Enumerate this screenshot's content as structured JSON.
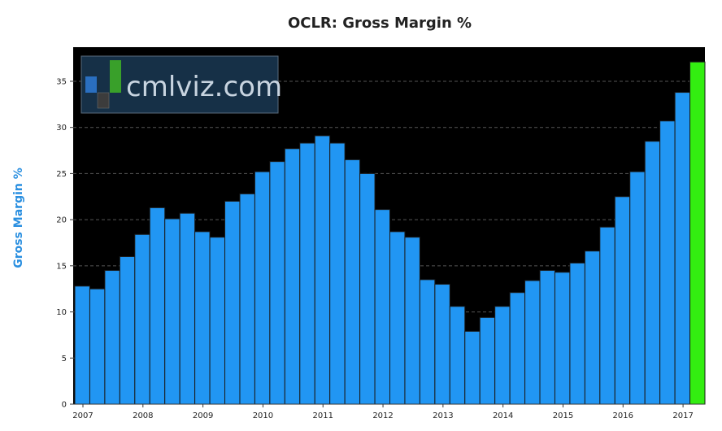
{
  "chart_data": {
    "type": "bar",
    "title": "OCLR: Gross Margin %",
    "xlabel": "",
    "ylabel": "Gross Margin %",
    "ylim": [
      0,
      38.7
    ],
    "yticks": [
      0,
      5,
      10,
      15,
      20,
      25,
      30,
      35
    ],
    "xtick_labels": [
      "2007",
      "2008",
      "2009",
      "2010",
      "2011",
      "2012",
      "2013",
      "2014",
      "2015",
      "2016",
      "2017"
    ],
    "grid": true,
    "values": [
      12.8,
      12.5,
      14.5,
      16.0,
      18.4,
      21.3,
      20.1,
      20.7,
      18.7,
      18.1,
      22.0,
      22.8,
      25.2,
      26.3,
      27.7,
      28.3,
      29.1,
      28.3,
      26.5,
      25.0,
      21.1,
      18.7,
      18.1,
      13.5,
      13.0,
      10.6,
      7.9,
      9.4,
      10.6,
      12.1,
      13.4,
      14.5,
      14.3,
      15.3,
      16.6,
      19.2,
      22.5,
      25.2,
      28.5,
      30.7,
      33.8,
      37.1
    ],
    "colors": {
      "bar": "#2196f3",
      "highlight": "#33ee11",
      "plot_bg": "#000000",
      "grid": "#555555",
      "ylabel": "#2a8fe0"
    },
    "highlight_last": true
  },
  "watermark": {
    "text": "cmlviz.com",
    "bg": "#163047"
  }
}
